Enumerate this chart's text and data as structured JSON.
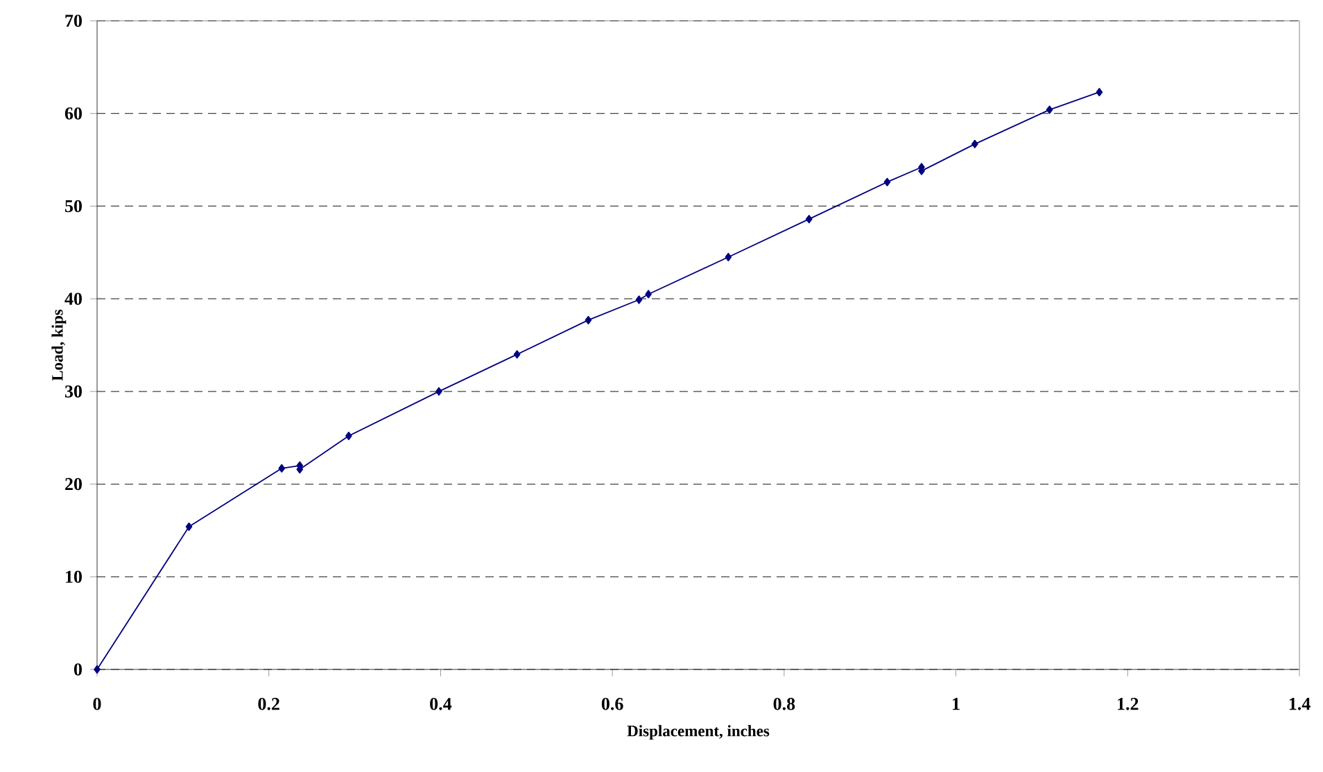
{
  "chart_data": {
    "type": "line",
    "xlabel": "Displacement, inches",
    "ylabel": "Load, kips",
    "x": [
      0,
      0.107,
      0.215,
      0.236,
      0.236,
      0.293,
      0.398,
      0.489,
      0.572,
      0.631,
      0.642,
      0.735,
      0.829,
      0.92,
      0.96,
      0.96,
      1.022,
      1.109,
      1.167
    ],
    "values": [
      0,
      15.4,
      21.7,
      22.0,
      21.6,
      25.2,
      30.0,
      34.0,
      37.7,
      39.9,
      40.5,
      44.5,
      48.6,
      52.6,
      54.2,
      53.8,
      56.7,
      60.4,
      62.3
    ],
    "color": "#000080",
    "marker": "diamond",
    "line_style": "solid",
    "grid": "y",
    "xlim": [
      0,
      1.4
    ],
    "ylim": [
      0,
      70
    ],
    "xticks": [
      0,
      0.2,
      0.4,
      0.6,
      0.8,
      1,
      1.2,
      1.4
    ],
    "yticks": [
      0,
      10,
      20,
      30,
      40,
      50,
      60,
      70
    ]
  }
}
